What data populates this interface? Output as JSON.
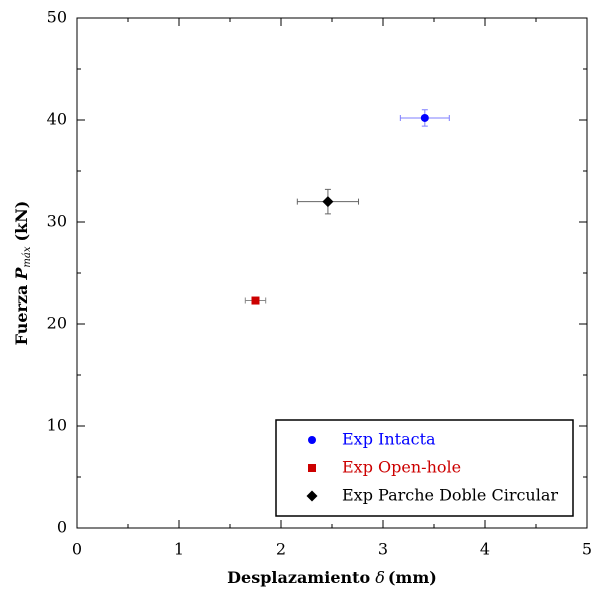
{
  "chart_data": {
    "type": "scatter",
    "xlabel": {
      "text": "Desplazamiento",
      "symbol": "δ",
      "unit": "(mm)"
    },
    "ylabel": {
      "text": "Fuerza",
      "symbol": "P",
      "subscript": "máx",
      "unit": "(kN)"
    },
    "xlim": [
      0,
      5
    ],
    "xticks": [
      0,
      1,
      2,
      3,
      4,
      5
    ],
    "ylim": [
      0,
      50
    ],
    "yticks": [
      0,
      10,
      20,
      30,
      40,
      50
    ],
    "legend": "lower right",
    "series": [
      {
        "name": "Exp Intacta",
        "color": "#0000ff",
        "errcolor": "#7f7fff",
        "marker": "circle",
        "x": [
          3.41
        ],
        "values": [
          40.2
        ],
        "xerr": [
          0.24
        ],
        "yerr": [
          0.8
        ]
      },
      {
        "name": "Exp Open-hole",
        "color": "#cc0000",
        "errcolor": "#888888",
        "marker": "square",
        "x": [
          1.75
        ],
        "values": [
          22.3
        ],
        "xerr": [
          0.1
        ],
        "yerr": [
          0.3
        ]
      },
      {
        "name": "Exp Parche Doble Circular",
        "color": "#000000",
        "errcolor": "#666666",
        "marker": "diamond",
        "x": [
          2.46
        ],
        "values": [
          32.0
        ],
        "xerr": [
          0.3
        ],
        "yerr": [
          1.2
        ]
      }
    ]
  }
}
